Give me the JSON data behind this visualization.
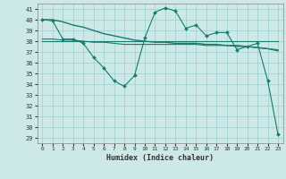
{
  "xlabel": "Humidex (Indice chaleur)",
  "ylabel": "",
  "bg_color": "#cce9e8",
  "grid_color": "#9ecece",
  "line_color": "#1a7a6e",
  "xlim": [
    -0.5,
    23.5
  ],
  "ylim": [
    28.5,
    41.5
  ],
  "yticks": [
    29,
    30,
    31,
    32,
    33,
    34,
    35,
    36,
    37,
    38,
    39,
    40,
    41
  ],
  "xticks": [
    0,
    1,
    2,
    3,
    4,
    5,
    6,
    7,
    8,
    9,
    10,
    11,
    12,
    13,
    14,
    15,
    16,
    17,
    18,
    19,
    20,
    21,
    22,
    23
  ],
  "series": [
    {
      "x": [
        0,
        1,
        2,
        3,
        4,
        5,
        6,
        7,
        8,
        9,
        10,
        11,
        12,
        13,
        14,
        15,
        16,
        17,
        18,
        19,
        20,
        21,
        22,
        23
      ],
      "y": [
        40.0,
        39.9,
        38.2,
        38.2,
        37.8,
        36.5,
        35.5,
        34.3,
        33.8,
        34.8,
        38.3,
        40.7,
        41.1,
        40.8,
        39.2,
        39.5,
        38.5,
        38.8,
        38.8,
        37.2,
        37.5,
        37.8,
        34.3,
        29.3
      ],
      "marker": "D",
      "markersize": 2.0,
      "linewidth": 0.8,
      "linestyle": "-"
    },
    {
      "x": [
        0,
        1,
        2,
        3,
        4,
        5,
        6,
        7,
        8,
        9,
        10,
        11,
        12,
        13,
        14,
        15,
        16,
        17,
        18,
        19,
        20,
        21,
        22,
        23
      ],
      "y": [
        40.0,
        40.0,
        39.8,
        39.5,
        39.3,
        39.0,
        38.7,
        38.5,
        38.3,
        38.1,
        38.0,
        37.9,
        37.9,
        37.8,
        37.8,
        37.8,
        37.7,
        37.7,
        37.6,
        37.6,
        37.5,
        37.4,
        37.3,
        37.1
      ],
      "marker": null,
      "markersize": 0,
      "linewidth": 1.0,
      "linestyle": "-"
    },
    {
      "x": [
        0,
        1,
        2,
        3,
        4,
        5,
        6,
        7,
        8,
        9,
        10,
        11,
        12,
        13,
        14,
        15,
        16,
        17,
        18,
        19,
        20,
        21,
        22,
        23
      ],
      "y": [
        38.0,
        38.0,
        38.0,
        38.0,
        38.0,
        38.0,
        38.0,
        38.0,
        38.0,
        38.0,
        38.0,
        38.0,
        38.0,
        38.0,
        38.0,
        38.0,
        38.0,
        38.0,
        38.0,
        38.0,
        38.0,
        38.0,
        38.0,
        38.0
      ],
      "marker": null,
      "markersize": 0,
      "linewidth": 0.8,
      "linestyle": "-"
    },
    {
      "x": [
        0,
        1,
        2,
        3,
        4,
        5,
        6,
        7,
        8,
        9,
        10,
        11,
        12,
        13,
        14,
        15,
        16,
        17,
        18,
        19,
        20,
        21,
        22,
        23
      ],
      "y": [
        38.2,
        38.2,
        38.1,
        38.1,
        38.0,
        37.9,
        37.9,
        37.8,
        37.7,
        37.7,
        37.7,
        37.7,
        37.7,
        37.7,
        37.7,
        37.7,
        37.6,
        37.6,
        37.6,
        37.5,
        37.5,
        37.4,
        37.3,
        37.2
      ],
      "marker": null,
      "markersize": 0,
      "linewidth": 0.8,
      "linestyle": "-"
    }
  ]
}
